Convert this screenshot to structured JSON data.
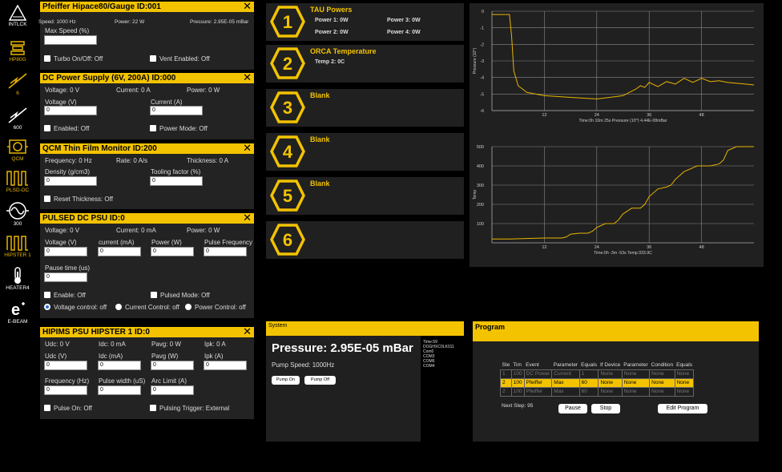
{
  "sidebar": {
    "items": [
      {
        "label": "INTLCK",
        "icon": "warning-triangle-icon"
      },
      {
        "label": "HP80G",
        "icon": "pump-icon"
      },
      {
        "label": "6",
        "icon": "voltage-icon"
      },
      {
        "label": "600",
        "icon": "voltage-icon"
      },
      {
        "label": "QCM",
        "icon": "qcm-icon"
      },
      {
        "label": "PLSD-DC",
        "icon": "pulse-icon"
      },
      {
        "label": "300",
        "icon": "sine-icon"
      },
      {
        "label": "HIPSTER 1",
        "icon": "pulse-icon"
      },
      {
        "label": "HEATER4",
        "icon": "thermometer-icon"
      },
      {
        "label": "E-BEAM",
        "icon": "ebeam-icon"
      }
    ]
  },
  "pfeiffer": {
    "title": "Pfeiffer Hipace80/Gauge  ID:001",
    "speed": "Speed: 1000 Hz",
    "power": "Power: 22 W",
    "pressure": "Pressure: 2.95E-05 mBar",
    "max_speed_label": "Max Speed (%)",
    "turbo": "Turbo On/Off: Off",
    "vent": "Vent Enabled: Off"
  },
  "dc_supply": {
    "title": "DC Power Supply (6V, 200A)  ID:000",
    "voltage": "Voltage: 0 V",
    "current": "Current: 0 A",
    "power": "Power: 0 W",
    "voltage_label": "Voltage (V)",
    "voltage_value": "0",
    "current_label": "Current (A)",
    "current_value": "0",
    "enabled": "Enabled: Off",
    "power_mode": "Power Mode: Off"
  },
  "qcm": {
    "title": "QCM Thin Film Monitor  ID:200",
    "frequency": "Frequency: 0 Hz",
    "rate": "Rate: 0 A/s",
    "thickness": "Thickness: 0 A",
    "density_label": "Density (g/cm3)",
    "density_value": "0",
    "tooling_label": "Tooling factor (%)",
    "tooling_value": "0",
    "reset": "Reset Thickness: Off"
  },
  "pulsed": {
    "title": "PULSED DC PSU  ID:0",
    "voltage": "Voltage: 0 V",
    "current": "Current: 0 mA",
    "power": "Power: 0 W",
    "voltage_label": "Voltage (V)",
    "current_label": "current (mA)",
    "power_label": "Power (W)",
    "freq_label": "Pulse Frequency",
    "voltage_value": "0",
    "current_value": "0",
    "power_value": "0",
    "freq_value": "0",
    "pause_label": "Pause time (us)",
    "pause_value": "0",
    "enable": "Enable: Off",
    "pulsed_mode": "Pulsed Mode: Off",
    "voltage_control": "Voltage control: off",
    "current_control": "Current Control: off",
    "power_control": "Power Control: off"
  },
  "hipims": {
    "title": "HIPIMS PSU HIPSTER 1  ID:0",
    "udc": "Udc: 0 V",
    "idc": "Idc: 0 mA",
    "pavg": "Pavg: 0 W",
    "ipk": "Ipk: 0 A",
    "udc_label": "Udc (V)",
    "idc_label": "Idc (mA)",
    "pavg_label": "Pavg (W)",
    "ipk_label": "Ipk (A)",
    "udc_value": "0",
    "idc_value": "0",
    "pavg_value": "0",
    "ipk_value": "0",
    "freq_label": "Frequency (Hz)",
    "width_label": "Pulse width (uS)",
    "arc_label": "Arc Limit (A)",
    "freq_value": "0",
    "width_value": "0",
    "arc_value": "0",
    "pulse_on": "Pulse On: Off",
    "trigger": "Pulsing Trigger: External"
  },
  "tiles": [
    {
      "num": "1",
      "title": "TAU Powers",
      "values": [
        "Power 1: 0W",
        "Power 3: 0W",
        "Power 2: 0W",
        "Power 4: 0W"
      ]
    },
    {
      "num": "2",
      "title": "ORCA Temperature",
      "values": [
        "Temp 2: 0C"
      ]
    },
    {
      "num": "3",
      "title": "Blank",
      "values": []
    },
    {
      "num": "4",
      "title": "Blank",
      "values": []
    },
    {
      "num": "5",
      "title": "Blank",
      "values": []
    },
    {
      "num": "6",
      "title": "",
      "values": []
    }
  ],
  "chart_data": [
    {
      "type": "line",
      "title": "",
      "xlabel": "Time:0h 10m 25s Pressure  (10^) 4.44E-08mBar",
      "ylabel": "Pressure (10^)",
      "xlim": [
        0,
        60
      ],
      "ylim": [
        -6,
        0
      ],
      "xticks": [
        "12",
        "24",
        "36",
        "48"
      ],
      "yticks": [
        "0",
        "-1",
        "-2",
        "-3",
        "-4",
        "-5",
        "-6"
      ],
      "series": [
        {
          "color": "#e8b400",
          "x": [
            0,
            4,
            4.5,
            5,
            6,
            8,
            12,
            18,
            24,
            30,
            33,
            34,
            35,
            36,
            38,
            40,
            42,
            44,
            46,
            48,
            50,
            52,
            54,
            56,
            58,
            60
          ],
          "y": [
            -0.2,
            -0.2,
            -1.5,
            -3.6,
            -4.5,
            -4.9,
            -5.1,
            -5.2,
            -5.3,
            -5.1,
            -4.7,
            -4.5,
            -4.6,
            -4.3,
            -4.55,
            -4.25,
            -4.4,
            -4.05,
            -4.3,
            -4.05,
            -4.25,
            -4.2,
            -4.3,
            -4.35,
            -4.4,
            -4.45
          ]
        }
      ]
    },
    {
      "type": "line",
      "title": "",
      "xlabel": "Time:0h -3m -53s Temp:333.9C",
      "ylabel": "Temp",
      "xlim": [
        0,
        60
      ],
      "ylim": [
        0,
        500
      ],
      "xticks": [
        "12",
        "24",
        "36",
        "48"
      ],
      "yticks": [
        "100",
        "200",
        "300",
        "400",
        "500"
      ],
      "series": [
        {
          "color": "#e8b400",
          "x": [
            0,
            4,
            12,
            16,
            17,
            18,
            20,
            22,
            23,
            24,
            26,
            28,
            29,
            30,
            32,
            34,
            35,
            36,
            38,
            40,
            41,
            42,
            44,
            46,
            47,
            48,
            50,
            52,
            53,
            54,
            56,
            60
          ],
          "y": [
            20,
            20,
            25,
            25,
            30,
            45,
            50,
            50,
            60,
            80,
            100,
            100,
            120,
            150,
            180,
            180,
            200,
            240,
            280,
            290,
            300,
            330,
            370,
            390,
            400,
            400,
            400,
            410,
            430,
            480,
            500,
            500
          ]
        }
      ]
    }
  ],
  "system": {
    "header": "System",
    "pressure": "Pressure: 2.95E-05 mBar",
    "pump_speed": "Pump Speed: 1000Hz",
    "pump_on": "Pump On",
    "pump_off": "Pump Off",
    "info": [
      "Time:59",
      "DOGHXC0LK011",
      "Com0",
      "COM3",
      "COM6",
      "COM4"
    ]
  },
  "program": {
    "header": "Program",
    "columns": [
      "Ste",
      "Tim",
      "Event",
      "Parameter",
      "Equals",
      "If Device",
      "Parameter",
      "Condition",
      "Equals"
    ],
    "rows": [
      {
        "cells": [
          "1",
          "100",
          "DC Power",
          "Current",
          "1",
          "None",
          "None",
          "None",
          "None"
        ],
        "active": false
      },
      {
        "cells": [
          "2",
          "100",
          "Pfeiffer",
          "Max",
          "60",
          "None",
          "None",
          "None",
          "None"
        ],
        "active": true
      },
      {
        "cells": [
          "2",
          "100",
          "Pfeiffer",
          "Max",
          "60",
          "None",
          "None",
          "None",
          "None"
        ],
        "active": false
      }
    ],
    "next_step": "Next Step: 95",
    "pause": "Pause",
    "stop": "Stop",
    "edit": "Edit Program"
  }
}
